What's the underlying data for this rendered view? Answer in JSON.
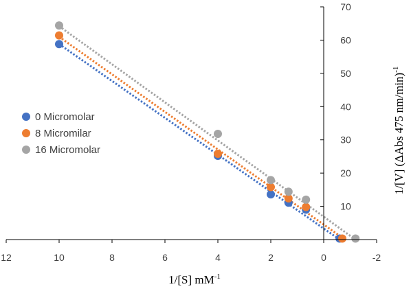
{
  "chart_data": {
    "type": "scatter",
    "x_axis": {
      "min": -2,
      "max": 12,
      "reversed": true,
      "ticks": [
        12,
        10,
        8,
        6,
        4,
        2,
        0,
        -2
      ],
      "label_main": "1/[S] mM",
      "label_sup": "-1"
    },
    "y_axis": {
      "min": 0,
      "max": 70,
      "ticks": [
        10,
        20,
        30,
        40,
        50,
        60,
        70
      ],
      "label_main": "1/[V] (ΔAbs 475 nm/min)",
      "label_sup": "-1"
    },
    "grid": false,
    "legend": "left",
    "series": [
      {
        "name": "0 Micromolar",
        "color": "#4472C4",
        "points": [
          [
            10,
            58.8
          ],
          [
            4,
            25.2
          ],
          [
            2,
            13.6
          ],
          [
            1.33,
            11.1
          ],
          [
            0.67,
            9.0
          ],
          [
            -0.6,
            0.3
          ]
        ],
        "trendline": [
          [
            10,
            58.8
          ],
          [
            -0.6,
            0
          ]
        ]
      },
      {
        "name": "8 Micromilar",
        "color": "#ED7D31",
        "points": [
          [
            10,
            61.4
          ],
          [
            4,
            25.8
          ],
          [
            2,
            15.8
          ],
          [
            1.33,
            12.4
          ],
          [
            0.67,
            9.8
          ],
          [
            -0.7,
            0.3
          ]
        ],
        "trendline": [
          [
            10,
            61.0
          ],
          [
            -0.8,
            0
          ]
        ]
      },
      {
        "name": "16 Micromolar",
        "color": "#A5A5A5",
        "points": [
          [
            10,
            64.4
          ],
          [
            4,
            31.8
          ],
          [
            2,
            17.9
          ],
          [
            1.33,
            14.4
          ],
          [
            0.67,
            12.0
          ],
          [
            -1.2,
            0.3
          ]
        ],
        "trendline": [
          [
            10,
            64.2
          ],
          [
            -1.2,
            0
          ]
        ]
      }
    ]
  }
}
